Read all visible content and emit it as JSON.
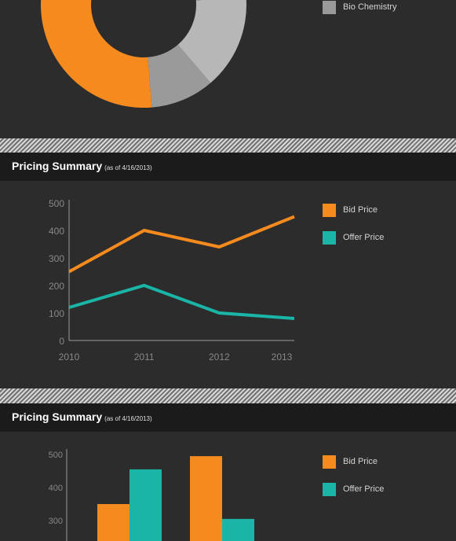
{
  "colors": {
    "background": "#2c2c2c",
    "header": "#1b1b1b",
    "bid": "#f58a1f",
    "offer": "#1ab5a6",
    "axis": "#9a9a9a"
  },
  "donut": {
    "legend": [
      {
        "label": "Bio Chemistry",
        "color": "#9a9a9a"
      }
    ]
  },
  "line_panel": {
    "title": "Pricing Summary",
    "subtitle": "(as of 4/16/2013)",
    "legend": [
      {
        "label": "Bid Price",
        "color": "#f58a1f"
      },
      {
        "label": "Offer Price",
        "color": "#1ab5a6"
      }
    ]
  },
  "bar_panel": {
    "title": "Pricing Summary",
    "subtitle": "(as of 4/16/2013)",
    "legend": [
      {
        "label": "Bid Price",
        "color": "#f58a1f"
      },
      {
        "label": "Offer Price",
        "color": "#1ab5a6"
      }
    ]
  },
  "chart_data": [
    {
      "type": "pie",
      "donut": true,
      "slices": [
        {
          "color": "#f58a1f",
          "value": 0.62
        },
        {
          "color": "#636363",
          "value": 0.03
        },
        {
          "color": "#7f7f7f",
          "value": 0.1
        },
        {
          "color": "#b7b7b7",
          "value": 0.15
        },
        {
          "color": "#9a9a9a",
          "name": "Bio Chemistry",
          "value": 0.1
        }
      ]
    },
    {
      "type": "line",
      "title": "Pricing Summary",
      "subtitle": "(as of 4/16/2013)",
      "x": [
        "2010",
        "2011",
        "2012",
        "2013"
      ],
      "ylim": [
        0,
        500
      ],
      "yticks": [
        0,
        100,
        200,
        300,
        400,
        500
      ],
      "series": [
        {
          "name": "Bid Price",
          "color": "#f58a1f",
          "values": [
            250,
            400,
            340,
            450
          ]
        },
        {
          "name": "Offer Price",
          "color": "#1ab5a6",
          "values": [
            120,
            200,
            100,
            80
          ]
        }
      ],
      "legend": "right",
      "grid": false
    },
    {
      "type": "bar",
      "title": "Pricing Summary",
      "subtitle": "(as of 4/16/2013)",
      "categories": [
        "",
        ""
      ],
      "ylim": [
        260,
        500
      ],
      "yticks": [
        300,
        400,
        500
      ],
      "series": [
        {
          "name": "Bid Price",
          "color": "#f58a1f",
          "values": [
            350,
            495
          ]
        },
        {
          "name": "Offer Price",
          "color": "#1ab5a6",
          "values": [
            455,
            305
          ]
        }
      ],
      "legend": "right",
      "grid": false
    }
  ]
}
